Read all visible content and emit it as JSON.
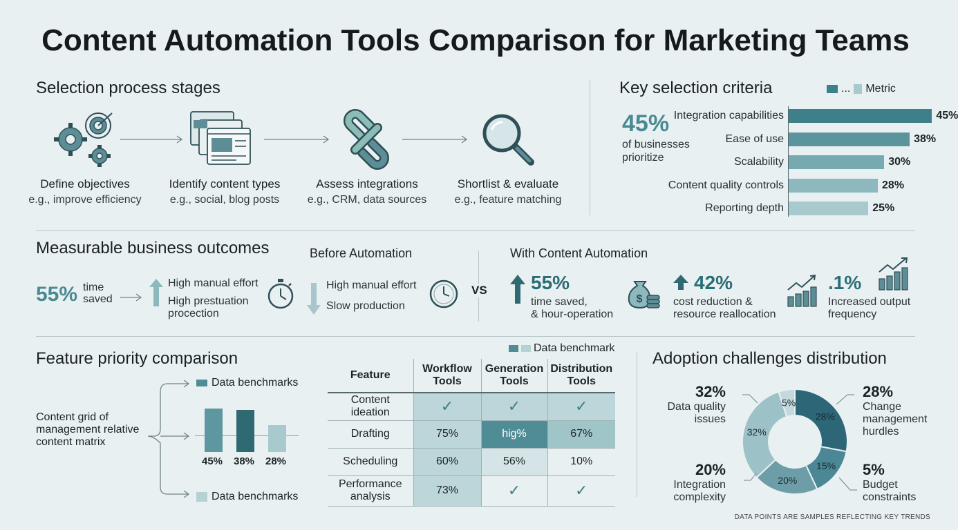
{
  "title": "Content Automation Tools Comparison for Marketing Teams",
  "selection": {
    "heading": "Selection process stages",
    "stages": [
      {
        "title": "Define objectives",
        "example": "e.g., improve efficiency",
        "icon": "gears-target-icon"
      },
      {
        "title": "Identify content types",
        "example": "e.g., social, blog posts",
        "icon": "browser-windows-icon"
      },
      {
        "title": "Assess integrations",
        "example": "e.g., CRM, data sources",
        "icon": "chain-link-icon"
      },
      {
        "title": "Shortlist & evaluate",
        "example": "e.g., feature matching",
        "icon": "magnifier-icon"
      }
    ]
  },
  "criteria": {
    "heading": "Key selection criteria",
    "legend_dots": "...",
    "legend_label": "Metric",
    "callout_value": "45%",
    "callout_text_1": "of businesses",
    "callout_text_2": "prioritize",
    "colors": [
      "#3e8089",
      "#5a959d",
      "#77a9b0",
      "#8cb8be",
      "#a8cace"
    ]
  },
  "outcomes": {
    "heading": "Measurable business outcomes",
    "time_value": "55%",
    "time_label_1": "time",
    "time_label_2": "saved",
    "manual_1": "High manual effort",
    "prestuation_1": "High prestuation",
    "prestuation_2": "procection",
    "before_heading": "Before Automation",
    "before_1": "High manual effort",
    "before_2": "Slow production",
    "vs": "VS",
    "with_heading": "With Content Automation",
    "w1_value": "55%",
    "w1_text_1": "time saved,",
    "w1_text_2": "& hour-operation",
    "w2_value": "42%",
    "w2_text_1": "cost reduction &",
    "w2_text_2": "resource reallocation",
    "w3_value": ".1%",
    "w3_text_1": "Increased output",
    "w3_text_2": "frequency"
  },
  "feature": {
    "heading": "Feature priority comparison",
    "left_text_1": "Content grid of",
    "left_text_2": "management relative",
    "left_text_3": "content matrix",
    "legend_top": "Data benchmarks",
    "legend_bottom": "Data benchmarks"
  },
  "matrix": {
    "legend": "Data benchmark",
    "headers": [
      "Feature",
      "Workflow\nTools",
      "Generation\nTools",
      "Distribution\nTools"
    ],
    "rows": [
      {
        "feature": "Content ideation",
        "cells": [
          "✓",
          "✓",
          "✓"
        ]
      },
      {
        "feature": "Drafting",
        "cells": [
          "75%",
          "hig%",
          "67%"
        ]
      },
      {
        "feature": "Scheduling",
        "cells": [
          "60%",
          "56%",
          "10%"
        ]
      },
      {
        "feature": "Performance\nanalysis",
        "cells": [
          "73%",
          "✓",
          "✓"
        ]
      }
    ]
  },
  "adoption": {
    "heading": "Adoption challenges distribution",
    "items": [
      {
        "value": "32%",
        "label": "Data quality\nissues"
      },
      {
        "value": "28%",
        "label": "Change\nmanagement\nhurdles"
      },
      {
        "value": "20%",
        "label": "Integration\ncomplexity"
      },
      {
        "value": "5%",
        "label": "Budget\nconstraints"
      }
    ]
  },
  "footer": "DATA POINTS ARE SAMPLES REFLECTING KEY TRENDS",
  "chart_data": [
    {
      "type": "bar",
      "orientation": "horizontal",
      "title": "Key selection criteria",
      "categories": [
        "Integration capabilities",
        "Ease of use",
        "Scalability",
        "Content quality controls",
        "Reporting depth"
      ],
      "values": [
        45,
        38,
        30,
        28,
        25
      ],
      "value_labels": [
        "45%",
        "38%",
        "30%",
        "28%",
        "25%"
      ],
      "xlim": [
        0,
        50
      ]
    },
    {
      "type": "bar",
      "title": "Feature priority comparison",
      "categories": [
        "",
        "",
        ""
      ],
      "values": [
        45,
        38,
        28
      ],
      "value_labels": [
        "45%",
        "38%",
        "28%"
      ],
      "ylim": [
        0,
        50
      ]
    },
    {
      "type": "pie",
      "donut": true,
      "title": "Adoption challenges distribution",
      "labels": [
        "",
        "",
        "",
        "",
        ""
      ],
      "values": [
        28,
        15,
        20,
        32,
        5
      ],
      "value_labels": [
        "28%",
        "15%",
        "20%",
        "32%",
        "5%"
      ],
      "colors": [
        "#2d6677",
        "#4c8796",
        "#6d9ea8",
        "#9cc1c6",
        "#c3d9dc"
      ]
    }
  ]
}
